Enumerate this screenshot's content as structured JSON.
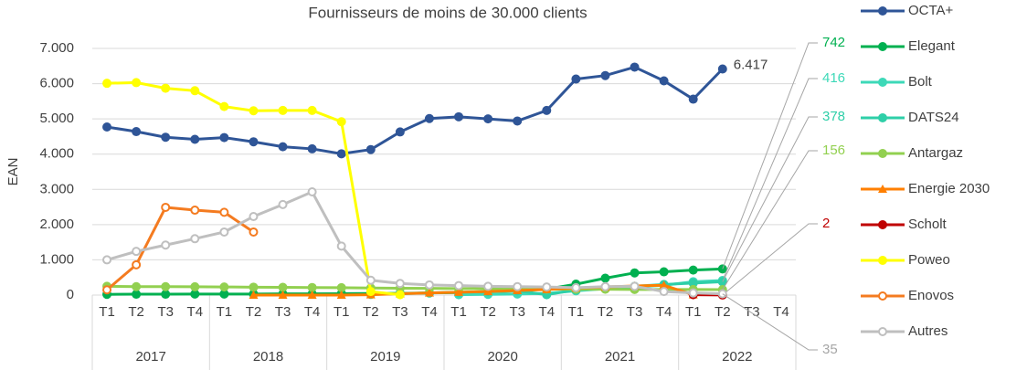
{
  "chart_data": {
    "type": "line",
    "title": "Fournisseurs de moins de 30.000 clients",
    "y_label": "EAN",
    "categories": [
      "T1",
      "T2",
      "T3",
      "T4",
      "T1",
      "T2",
      "T3",
      "T4",
      "T1",
      "T2",
      "T3",
      "T4",
      "T1",
      "T2",
      "T3",
      "T4",
      "T1",
      "T2",
      "T3",
      "T4",
      "T1",
      "T2",
      "T3",
      "T4"
    ],
    "groups": [
      "2017",
      "2018",
      "2019",
      "2020",
      "2021",
      "2022"
    ],
    "ylim": [
      0,
      7000
    ],
    "yticks": [
      0,
      {
        "value": 1000,
        "label": "1.000"
      },
      {
        "value": 2000,
        "label": "2.000"
      },
      {
        "value": 3000,
        "label": "3.000"
      },
      {
        "value": 4000,
        "label": "4.000"
      },
      {
        "value": 5000,
        "label": "5.000"
      },
      {
        "value": 6000,
        "label": "6.000"
      },
      {
        "value": 7000,
        "label": "7.000"
      }
    ],
    "grid": true,
    "legend": "right",
    "series": [
      {
        "name": "OCTA+",
        "color": "#2f5597",
        "marker": "circle",
        "values": [
          4770,
          4640,
          4480,
          4420,
          4470,
          4350,
          4210,
          4150,
          4010,
          4130,
          4630,
          5010,
          5060,
          5000,
          4940,
          5240,
          6130,
          6230,
          6470,
          6080,
          5560,
          6417,
          null,
          null
        ],
        "value_labels": [
          null,
          null,
          null,
          null,
          null,
          null,
          null,
          null,
          null,
          null,
          null,
          null,
          null,
          null,
          null,
          null,
          null,
          null,
          null,
          null,
          null,
          "6.417",
          null,
          null
        ]
      },
      {
        "name": "Elegant",
        "color": "#00b050",
        "marker": "circle",
        "values": [
          20,
          25,
          25,
          30,
          30,
          30,
          35,
          35,
          40,
          45,
          50,
          60,
          70,
          90,
          120,
          170,
          310,
          480,
          630,
          660,
          710,
          742,
          null,
          null
        ]
      },
      {
        "name": "Bolt",
        "color": "#3dd9b8",
        "marker": "circle",
        "values": [
          null,
          null,
          null,
          null,
          null,
          null,
          null,
          null,
          null,
          null,
          null,
          null,
          10,
          20,
          30,
          50,
          120,
          180,
          230,
          280,
          380,
          416,
          null,
          null
        ]
      },
      {
        "name": "DATS24",
        "color": "#2ecfa8",
        "marker": "circle",
        "values": [
          null,
          null,
          null,
          null,
          null,
          null,
          null,
          null,
          null,
          20,
          40,
          60,
          80,
          100,
          120,
          10,
          150,
          200,
          250,
          300,
          340,
          378,
          null,
          null
        ]
      },
      {
        "name": "Antargaz",
        "color": "#92d050",
        "marker": "circle",
        "values": [
          250,
          240,
          240,
          235,
          230,
          225,
          220,
          215,
          210,
          200,
          195,
          190,
          185,
          180,
          175,
          170,
          165,
          165,
          160,
          160,
          158,
          156,
          null,
          null
        ]
      },
      {
        "name": "Energie 2030",
        "color": "#ff7f00",
        "marker": "triangle",
        "values": [
          null,
          null,
          null,
          null,
          null,
          0,
          0,
          0,
          0,
          10,
          40,
          60,
          80,
          100,
          130,
          160,
          200,
          230,
          260,
          280,
          10,
          null,
          null,
          null
        ]
      },
      {
        "name": "Scholt",
        "color": "#c00000",
        "marker": "circle",
        "values": [
          null,
          null,
          null,
          null,
          null,
          null,
          null,
          null,
          null,
          null,
          null,
          null,
          null,
          null,
          null,
          null,
          null,
          null,
          null,
          null,
          10,
          2,
          null,
          null
        ]
      },
      {
        "name": "Poweo",
        "color": "#ffff00",
        "marker": "circle",
        "values": [
          6010,
          6030,
          5870,
          5800,
          5350,
          5230,
          5240,
          5240,
          4920,
          100,
          10,
          null,
          null,
          null,
          null,
          null,
          null,
          null,
          null,
          null,
          null,
          null,
          null,
          null
        ]
      },
      {
        "name": "Enovos",
        "color": "#f47b20",
        "marker": "open",
        "values": [
          150,
          860,
          2490,
          2410,
          2350,
          1790,
          null,
          null,
          null,
          null,
          null,
          null,
          null,
          null,
          null,
          null,
          null,
          null,
          null,
          null,
          null,
          null,
          null,
          null
        ]
      },
      {
        "name": "Autres",
        "color": "#bfbfbf",
        "marker": "open",
        "values": [
          1000,
          1240,
          1420,
          1600,
          1790,
          2230,
          2570,
          2930,
          1390,
          420,
          330,
          290,
          270,
          250,
          240,
          230,
          210,
          240,
          250,
          100,
          60,
          35,
          null,
          null
        ]
      }
    ]
  }
}
